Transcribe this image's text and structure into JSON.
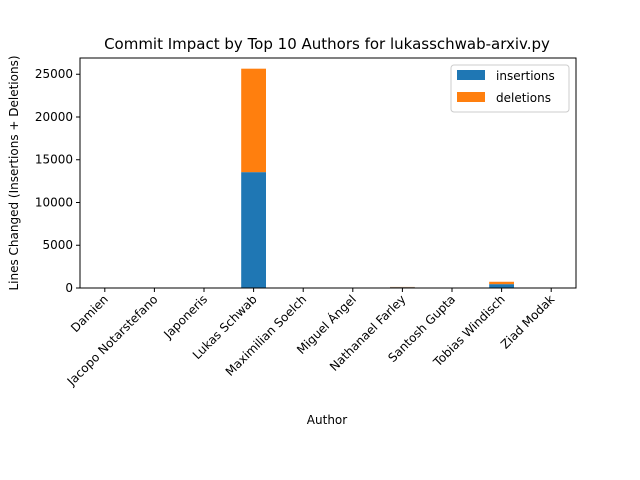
{
  "chart_data": {
    "type": "bar",
    "stacked": true,
    "title": "Commit Impact by Top 10 Authors for lukasschwab-arxiv.py",
    "xlabel": "Author",
    "ylabel": "Lines Changed (Insertions + Deletions)",
    "categories": [
      "Damien",
      "Jacopo Notarstefano",
      "Japoneris",
      "Lukas Schwab",
      "Maximilian Soelch",
      "Miguel Ángel",
      "Nathanael Farley",
      "Santosh Gupta",
      "Tobias Windisch",
      "Ziad Modak"
    ],
    "series": [
      {
        "name": "insertions",
        "color": "#1f77b4",
        "values": [
          2,
          4,
          4,
          13550,
          2,
          2,
          95,
          2,
          450,
          2
        ]
      },
      {
        "name": "deletions",
        "color": "#ff7f0e",
        "values": [
          1,
          2,
          2,
          12100,
          1,
          1,
          30,
          1,
          280,
          1
        ]
      }
    ],
    "ylim": [
      0,
      26900
    ],
    "yticks": [
      0,
      5000,
      10000,
      15000,
      20000,
      25000
    ],
    "grid": false,
    "legend_position": "top-right"
  }
}
